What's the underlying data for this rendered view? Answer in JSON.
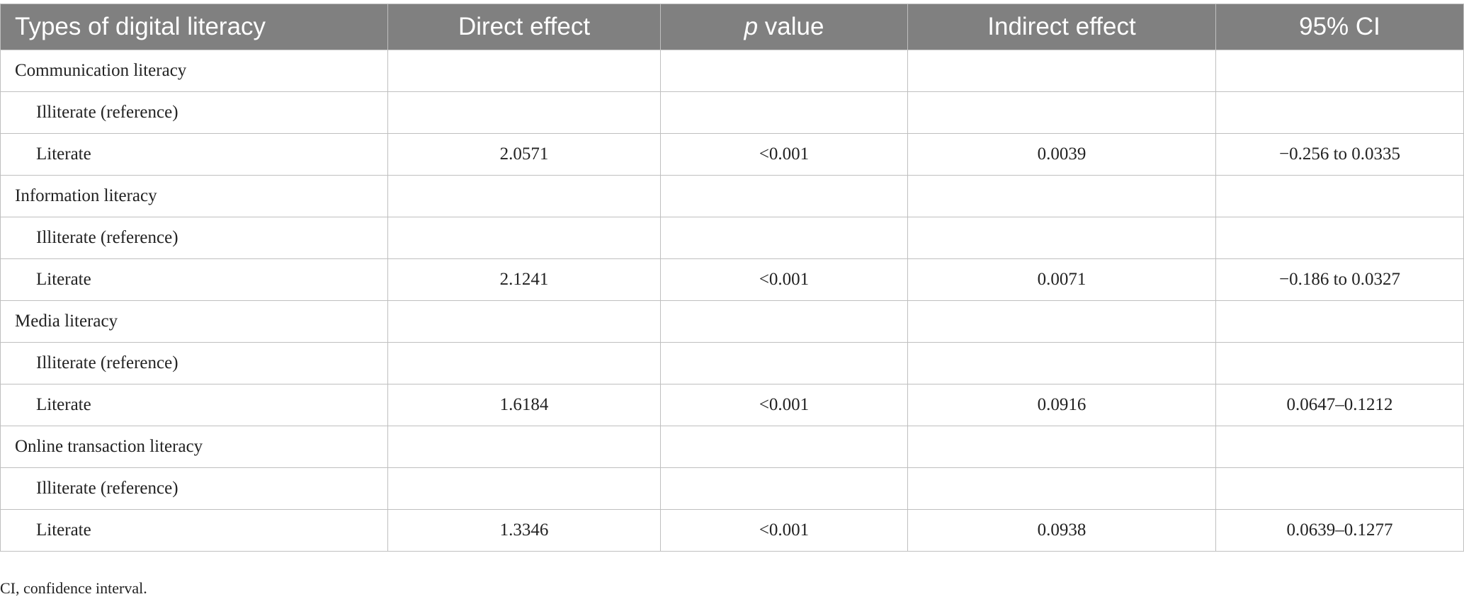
{
  "table": {
    "headers": [
      "Types of digital literacy",
      "Direct effect",
      {
        "italic": "p",
        "text": "value"
      },
      "Indirect effect",
      "95% CI"
    ],
    "groups": [
      {
        "label": "Communication literacy",
        "reference": "Illiterate (reference)",
        "literate": {
          "label": "Literate",
          "direct": 2.0571,
          "p": "<0.001",
          "indirect": 0.0039,
          "ci": "−0.256 to 0.0335"
        }
      },
      {
        "label": "Information literacy",
        "reference": "Illiterate (reference)",
        "literate": {
          "label": "Literate",
          "direct": 2.1241,
          "p": "<0.001",
          "indirect": 0.0071,
          "ci": "−0.186 to 0.0327"
        }
      },
      {
        "label": "Media literacy",
        "reference": "Illiterate (reference)",
        "literate": {
          "label": "Literate",
          "direct": 1.6184,
          "p": "<0.001",
          "indirect": 0.0916,
          "ci": "0.0647–0.1212"
        }
      },
      {
        "label": "Online transaction literacy",
        "reference": "Illiterate (reference)",
        "literate": {
          "label": "Literate",
          "direct": 1.3346,
          "p": "<0.001",
          "indirect": 0.0938,
          "ci": "0.0639–0.1277"
        }
      }
    ]
  },
  "footnote": "CI, confidence interval."
}
